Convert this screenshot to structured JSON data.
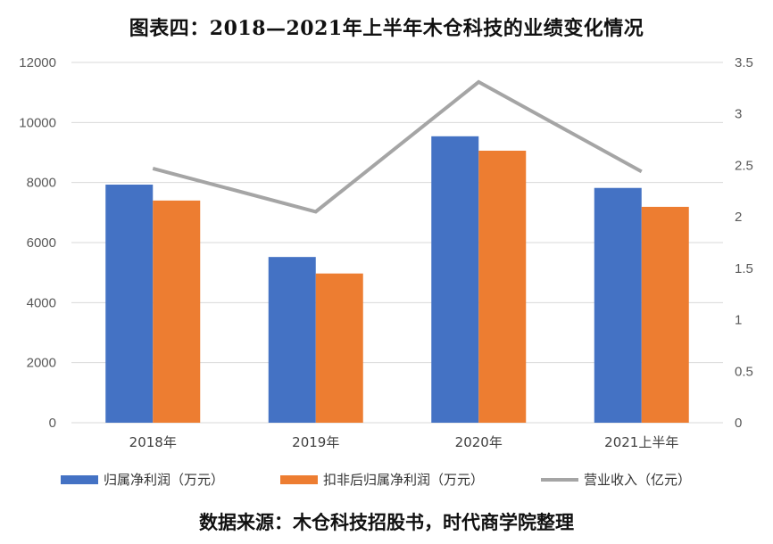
{
  "title": "图表四：2018—2021年上半年木仓科技的业绩变化情况",
  "source": "数据来源：木仓科技招股书，时代商学院整理",
  "colors": {
    "series1": "#4472c4",
    "series2": "#ed7d31",
    "line": "#a5a5a5",
    "grid": "#d9d9d9"
  },
  "chart_data": {
    "type": "bar",
    "categories": [
      "2018年",
      "2019年",
      "2020年",
      "2021上半年"
    ],
    "series": [
      {
        "name": "归属净利润（万元）",
        "type": "bar",
        "axis": "left",
        "values": [
          7930,
          5520,
          9540,
          7820
        ]
      },
      {
        "name": "扣非后归属净利润（万元）",
        "type": "bar",
        "axis": "left",
        "values": [
          7400,
          4970,
          9060,
          7190
        ]
      },
      {
        "name": "营业收入（亿元）",
        "type": "line",
        "axis": "right",
        "values": [
          2.47,
          2.05,
          3.31,
          2.44
        ]
      }
    ],
    "ylim_left": [
      0,
      12000
    ],
    "yticks_left": [
      "0",
      "2000",
      "4000",
      "6000",
      "8000",
      "10000",
      "12000"
    ],
    "ylim_right": [
      0,
      3.5
    ],
    "yticks_right": [
      "0",
      "0.5",
      "1",
      "1.5",
      "2",
      "2.5",
      "3",
      "3.5"
    ],
    "grid": true,
    "legend_position": "bottom"
  }
}
